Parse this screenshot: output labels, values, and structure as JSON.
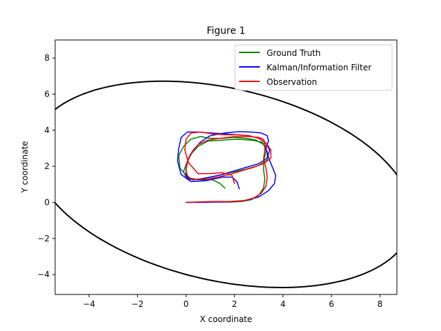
{
  "chart_data": {
    "type": "line",
    "title": "Figure 1",
    "xlabel": "X coordinate",
    "ylabel": "Y coordinate",
    "xlim": [
      -5.4,
      8.7
    ],
    "ylim": [
      -5.1,
      9.0
    ],
    "xticks": [
      -4,
      -2,
      0,
      2,
      4,
      6,
      8
    ],
    "yticks": [
      -4,
      -2,
      0,
      2,
      4,
      6,
      8
    ],
    "grid": false,
    "legend_position": "top-right",
    "series": [
      {
        "name": "Ground Truth",
        "color": "#008000",
        "x": [
          0.0,
          0.6,
          1.2,
          1.8,
          2.3,
          2.7,
          3.0,
          3.2,
          3.25,
          3.2,
          3.2,
          3.3,
          3.3,
          3.25,
          3.1,
          2.7,
          2.1,
          1.5,
          0.9,
          0.5,
          0.15,
          0.0,
          -0.1,
          0.0,
          0.1,
          0.3,
          0.6,
          1.0,
          1.5,
          2.0,
          2.5,
          3.0,
          3.35,
          3.35,
          3.2,
          2.9,
          2.5,
          2.0,
          1.5,
          1.0,
          0.6,
          0.2,
          -0.1,
          -0.3,
          -0.25,
          0.1,
          0.6,
          1.1,
          1.4,
          1.6
        ],
        "y": [
          0.0,
          0.02,
          0.03,
          0.02,
          0.05,
          0.15,
          0.4,
          0.8,
          1.3,
          1.8,
          2.3,
          2.8,
          3.1,
          3.25,
          3.35,
          3.45,
          3.5,
          3.45,
          3.4,
          3.1,
          2.6,
          2.1,
          1.7,
          1.4,
          1.3,
          1.25,
          1.3,
          1.4,
          1.55,
          1.7,
          1.85,
          2.05,
          2.35,
          2.8,
          3.2,
          3.45,
          3.55,
          3.6,
          3.55,
          3.55,
          3.65,
          3.5,
          3.1,
          2.6,
          1.9,
          1.35,
          1.25,
          1.25,
          1.05,
          0.8
        ]
      },
      {
        "name": "Kalman/Information Filter",
        "color": "#0000ff",
        "x": [
          0.0,
          0.6,
          1.2,
          1.8,
          2.4,
          3.0,
          3.4,
          3.65,
          3.7,
          3.55,
          3.4,
          3.3,
          3.4,
          3.35,
          3.1,
          2.7,
          2.2,
          1.6,
          1.0,
          0.6,
          0.3,
          0.1,
          0.0,
          0.0,
          0.1,
          0.3,
          0.6,
          1.0,
          1.5,
          2.0,
          2.5,
          3.0,
          3.35,
          3.45,
          3.3,
          3.0,
          2.6,
          2.1,
          1.6,
          1.0,
          0.5,
          0.05,
          -0.2,
          -0.3,
          -0.35,
          -0.2,
          0.2,
          0.8,
          1.5,
          1.9,
          2.1,
          2.2
        ],
        "y": [
          0.0,
          0.0,
          0.02,
          0.03,
          0.1,
          0.3,
          0.65,
          1.05,
          1.5,
          2.0,
          2.5,
          3.0,
          3.4,
          3.7,
          3.85,
          3.9,
          3.92,
          3.85,
          3.7,
          3.35,
          2.9,
          2.4,
          1.9,
          1.5,
          1.3,
          1.25,
          1.3,
          1.4,
          1.55,
          1.75,
          1.95,
          2.15,
          2.45,
          2.9,
          3.3,
          3.55,
          3.7,
          3.75,
          3.8,
          3.85,
          3.9,
          3.9,
          3.6,
          3.0,
          2.3,
          1.55,
          1.15,
          1.2,
          1.4,
          1.4,
          1.15,
          0.75
        ]
      },
      {
        "name": "Observation",
        "color": "#ff0000",
        "x": [
          0.0,
          0.6,
          1.2,
          1.8,
          2.4,
          2.8,
          3.1,
          3.3,
          3.35,
          3.3,
          3.2,
          3.25,
          3.25,
          3.2,
          3.0,
          2.6,
          2.0,
          1.4,
          0.9,
          0.5,
          0.2,
          0.05,
          0.0,
          0.05,
          0.2,
          0.5,
          0.9,
          1.3,
          1.8,
          2.3,
          2.8,
          3.2,
          3.5,
          3.5,
          3.3,
          3.0,
          2.6,
          2.1,
          1.6,
          1.1,
          0.6,
          0.2,
          0.0,
          -0.05,
          0.1,
          0.5,
          1.0,
          1.5,
          1.9,
          2.0
        ],
        "y": [
          0.0,
          0.03,
          0.05,
          0.05,
          0.1,
          0.25,
          0.5,
          0.9,
          1.4,
          1.9,
          2.4,
          2.9,
          3.3,
          3.5,
          3.6,
          3.65,
          3.65,
          3.55,
          3.45,
          3.2,
          2.7,
          2.2,
          1.8,
          1.5,
          1.3,
          1.25,
          1.3,
          1.4,
          1.55,
          1.75,
          1.95,
          2.15,
          2.45,
          2.9,
          3.3,
          3.55,
          3.7,
          3.75,
          3.75,
          3.8,
          3.9,
          3.85,
          3.5,
          2.9,
          2.2,
          1.6,
          1.6,
          1.65,
          1.5,
          1.05
        ]
      },
      {
        "name": "",
        "color": "#000000",
        "style": "ellipse",
        "center": [
          1.5,
          1.0
        ],
        "semi_axes": [
          8.2,
          5.2
        ],
        "rotation_deg": -22
      }
    ]
  }
}
